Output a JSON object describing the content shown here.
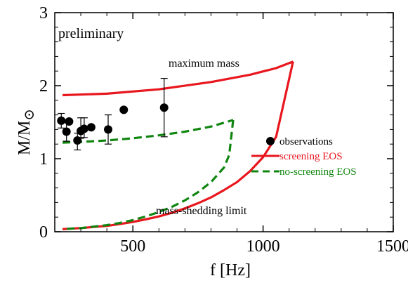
{
  "chart_data": {
    "type": "line",
    "title": "",
    "xlabel": "f [Hz]",
    "ylabel_main": "M/M",
    "ylabel_sub": "⊙",
    "xlim": [
      200,
      1500
    ],
    "ylim": [
      0,
      3
    ],
    "x_ticks": [
      {
        "value": 500,
        "label": "500"
      },
      {
        "value": 1000,
        "label": "1000"
      },
      {
        "value": 1500,
        "label": "1500"
      }
    ],
    "y_ticks": [
      {
        "value": 0,
        "label": "0"
      },
      {
        "value": 1,
        "label": "1"
      },
      {
        "value": 2,
        "label": "2"
      },
      {
        "value": 3,
        "label": "3"
      }
    ],
    "grid": false,
    "legend_position": "right",
    "legend": [
      {
        "label": "observations",
        "color": "#000000",
        "kind": "marker"
      },
      {
        "label": "screening EOS",
        "color": "#e8161d",
        "kind": "solid"
      },
      {
        "label": "no-screening EOS",
        "color": "#108610",
        "kind": "dashed"
      }
    ],
    "annotations": {
      "preliminary": "preliminary",
      "maximum_mass": "maximum mass",
      "mass_shedding": "mass-shedding limit"
    },
    "series": [
      {
        "name": "screening EOS",
        "color": "#e8161d",
        "style": "solid",
        "segments": [
          {
            "x": [
              230,
              400,
              600,
              800,
              950,
              1050,
              1115
            ],
            "y": [
              1.87,
              1.89,
              1.95,
              2.05,
              2.15,
              2.24,
              2.33
            ]
          },
          {
            "x": [
              1115,
              1050,
              1000,
              950,
              900,
              850,
              800,
              750,
              700,
              650,
              600,
              550,
              500,
              450,
              400,
              350,
              300,
              250,
              230
            ],
            "y": [
              2.33,
              1.3,
              1.02,
              0.83,
              0.68,
              0.57,
              0.47,
              0.39,
              0.32,
              0.26,
              0.21,
              0.17,
              0.135,
              0.105,
              0.08,
              0.065,
              0.05,
              0.04,
              0.035
            ]
          }
        ]
      },
      {
        "name": "no-screening EOS",
        "color": "#108610",
        "style": "dashed",
        "segments": [
          {
            "x": [
              230,
              300,
              400,
              500,
              600,
              700,
              800,
              885
            ],
            "y": [
              1.22,
              1.23,
              1.25,
              1.28,
              1.32,
              1.37,
              1.44,
              1.53
            ]
          },
          {
            "x": [
              885,
              870,
              850,
              800,
              750,
              700,
              650,
              600,
              550,
              500,
              450,
              400,
              350,
              300,
              250,
              230
            ],
            "y": [
              1.53,
              1.05,
              0.88,
              0.68,
              0.54,
              0.43,
              0.34,
              0.27,
              0.21,
              0.16,
              0.12,
              0.09,
              0.07,
              0.05,
              0.04,
              0.035
            ]
          }
        ]
      }
    ],
    "observations": [
      {
        "x": 225,
        "y": 1.52,
        "err_low": 0.1,
        "err_high": 0.1
      },
      {
        "x": 245,
        "y": 1.37,
        "err_low": 0.13,
        "err_high": 0.13
      },
      {
        "x": 255,
        "y": 1.51,
        "err_low": 0.0,
        "err_high": 0.0
      },
      {
        "x": 287,
        "y": 1.25,
        "err_low": 0.13,
        "err_high": 0.1
      },
      {
        "x": 300,
        "y": 1.38,
        "err_low": 0.1,
        "err_high": 0.18
      },
      {
        "x": 313,
        "y": 1.41,
        "err_low": 0.12,
        "err_high": 0.15
      },
      {
        "x": 340,
        "y": 1.43,
        "err_low": 0.0,
        "err_high": 0.0
      },
      {
        "x": 405,
        "y": 1.4,
        "err_low": 0.2,
        "err_high": 0.2
      },
      {
        "x": 465,
        "y": 1.67,
        "err_low": 0.0,
        "err_high": 0.0
      },
      {
        "x": 620,
        "y": 1.7,
        "err_low": 0.4,
        "err_high": 0.4
      }
    ]
  }
}
